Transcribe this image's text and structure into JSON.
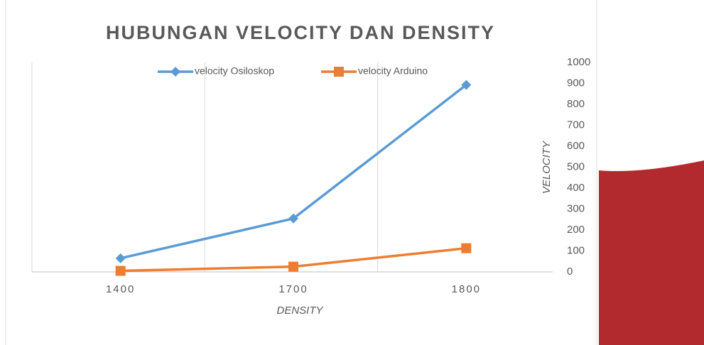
{
  "chart_data": {
    "type": "line",
    "title": "HUBUNGAN VELOCITY DAN DENSITY",
    "x_label": "DENSITY",
    "y_label": "VELOCITY",
    "categories": [
      "1400",
      "1700",
      "1800"
    ],
    "series": [
      {
        "name": "velocity Osiloskop",
        "color": "#5b9bd5",
        "marker": "diamond",
        "values": [
          65,
          255,
          893
        ]
      },
      {
        "name": "velocity Arduino",
        "color": "#ed7d31",
        "marker": "square",
        "values": [
          5,
          25,
          113
        ]
      }
    ],
    "ylim": [
      0,
      1000
    ],
    "yticks": [
      0,
      100,
      200,
      300,
      400,
      500,
      600,
      700,
      800,
      900,
      1000
    ],
    "y_axis_side": "right",
    "grid": true,
    "legend": "top"
  }
}
